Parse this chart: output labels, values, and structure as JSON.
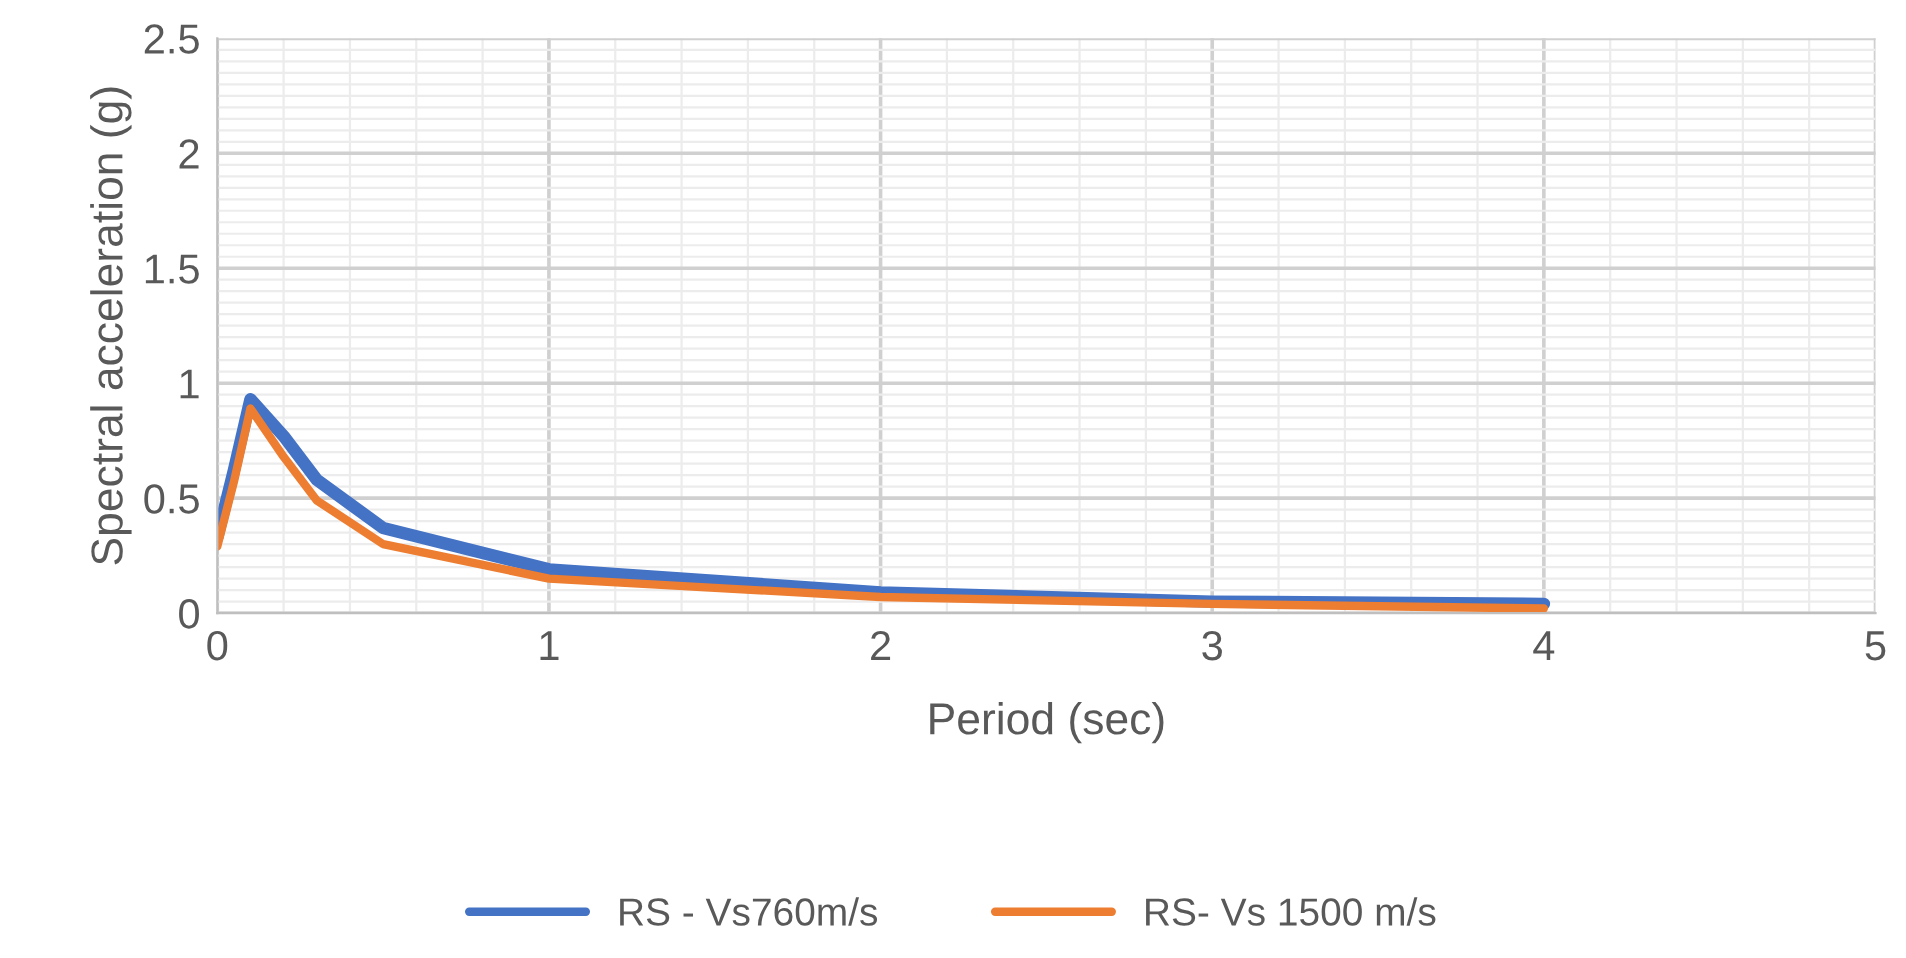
{
  "chart_data": {
    "type": "line",
    "xlabel": "Period (sec)",
    "ylabel": "Spectral acceleration (g)",
    "x": [
      0,
      0.05,
      0.1,
      0.2,
      0.3,
      0.5,
      1,
      2,
      3,
      4
    ],
    "series": [
      {
        "name": "RS - Vs760m/s",
        "color": "#4472c4",
        "values": [
          0.33,
          0.62,
          0.93,
          0.77,
          0.58,
          0.37,
          0.19,
          0.09,
          0.05,
          0.04
        ]
      },
      {
        "name": "RS- Vs 1500 m/s",
        "color": "#ed7d31",
        "values": [
          0.29,
          0.57,
          0.89,
          0.68,
          0.49,
          0.3,
          0.15,
          0.07,
          0.04,
          0.02
        ]
      }
    ],
    "xlim": [
      0,
      5
    ],
    "xticks": [
      0,
      1,
      2,
      3,
      4,
      5
    ],
    "ylim": [
      0,
      2.5
    ],
    "yticks": [
      0,
      0.5,
      1,
      1.5,
      2,
      2.5
    ],
    "grid": true,
    "legend": "bottom",
    "marker": "none",
    "line_style": "solid"
  }
}
